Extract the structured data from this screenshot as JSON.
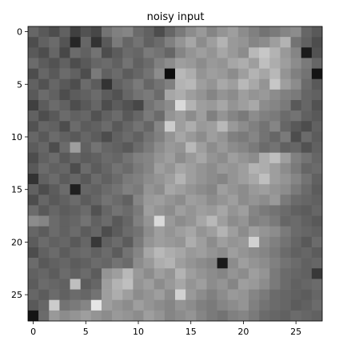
{
  "chart_data": {
    "type": "heatmap",
    "title": "noisy input",
    "xlabel": "",
    "ylabel": "",
    "colormap": "gray",
    "rows": 28,
    "cols": 28,
    "xlim": [
      -0.5,
      27.5
    ],
    "ylim": [
      27.5,
      -0.5
    ],
    "x_ticks": [
      0,
      5,
      10,
      15,
      20,
      25
    ],
    "y_ticks": [
      0,
      5,
      10,
      15,
      20,
      25
    ],
    "x_tick_labels": [
      "0",
      "5",
      "10",
      "15",
      "20",
      "25"
    ],
    "y_tick_labels": [
      "0",
      "5",
      "10",
      "15",
      "20",
      "25"
    ],
    "grid": false,
    "values": [
      [
        0.4,
        0.35,
        0.3,
        0.38,
        0.25,
        0.32,
        0.28,
        0.45,
        0.5,
        0.52,
        0.42,
        0.38,
        0.3,
        0.4,
        0.48,
        0.55,
        0.6,
        0.52,
        0.58,
        0.62,
        0.55,
        0.5,
        0.45,
        0.48,
        0.52,
        0.55,
        0.4,
        0.35
      ],
      [
        0.3,
        0.38,
        0.42,
        0.33,
        0.15,
        0.4,
        0.2,
        0.35,
        0.48,
        0.4,
        0.45,
        0.38,
        0.42,
        0.5,
        0.58,
        0.65,
        0.55,
        0.62,
        0.7,
        0.6,
        0.58,
        0.52,
        0.55,
        0.62,
        0.7,
        0.45,
        0.38,
        0.3
      ],
      [
        0.35,
        0.3,
        0.4,
        0.28,
        0.42,
        0.38,
        0.45,
        0.3,
        0.36,
        0.42,
        0.4,
        0.48,
        0.45,
        0.4,
        0.52,
        0.58,
        0.62,
        0.58,
        0.65,
        0.6,
        0.55,
        0.72,
        0.78,
        0.7,
        0.6,
        0.52,
        0.1,
        0.32
      ],
      [
        0.42,
        0.36,
        0.32,
        0.38,
        0.3,
        0.35,
        0.4,
        0.42,
        0.38,
        0.45,
        0.38,
        0.42,
        0.5,
        0.55,
        0.62,
        0.6,
        0.55,
        0.6,
        0.58,
        0.65,
        0.68,
        0.62,
        0.75,
        0.68,
        0.62,
        0.55,
        0.48,
        0.4
      ],
      [
        0.3,
        0.4,
        0.35,
        0.42,
        0.38,
        0.3,
        0.48,
        0.38,
        0.42,
        0.36,
        0.4,
        0.45,
        0.55,
        0.05,
        0.72,
        0.68,
        0.58,
        0.62,
        0.6,
        0.55,
        0.62,
        0.7,
        0.65,
        0.72,
        0.58,
        0.5,
        0.45,
        0.08
      ],
      [
        0.38,
        0.32,
        0.4,
        0.35,
        0.3,
        0.42,
        0.36,
        0.2,
        0.38,
        0.42,
        0.48,
        0.4,
        0.45,
        0.5,
        0.7,
        0.72,
        0.62,
        0.58,
        0.66,
        0.62,
        0.72,
        0.66,
        0.58,
        0.78,
        0.62,
        0.55,
        0.42,
        0.35
      ],
      [
        0.35,
        0.42,
        0.38,
        0.3,
        0.36,
        0.38,
        0.42,
        0.36,
        0.32,
        0.4,
        0.45,
        0.48,
        0.42,
        0.65,
        0.68,
        0.62,
        0.58,
        0.52,
        0.58,
        0.55,
        0.62,
        0.58,
        0.6,
        0.55,
        0.5,
        0.48,
        0.4,
        0.38
      ],
      [
        0.25,
        0.36,
        0.42,
        0.38,
        0.3,
        0.35,
        0.4,
        0.3,
        0.36,
        0.32,
        0.28,
        0.45,
        0.5,
        0.55,
        0.85,
        0.7,
        0.62,
        0.6,
        0.65,
        0.58,
        0.62,
        0.66,
        0.55,
        0.52,
        0.48,
        0.35,
        0.4,
        0.32
      ],
      [
        0.38,
        0.3,
        0.35,
        0.42,
        0.38,
        0.4,
        0.32,
        0.38,
        0.42,
        0.35,
        0.4,
        0.48,
        0.42,
        0.58,
        0.62,
        0.55,
        0.62,
        0.5,
        0.58,
        0.52,
        0.48,
        0.55,
        0.5,
        0.48,
        0.42,
        0.45,
        0.38,
        0.35
      ],
      [
        0.32,
        0.4,
        0.38,
        0.3,
        0.42,
        0.36,
        0.38,
        0.42,
        0.35,
        0.4,
        0.45,
        0.4,
        0.52,
        0.8,
        0.62,
        0.68,
        0.6,
        0.62,
        0.72,
        0.6,
        0.55,
        0.5,
        0.45,
        0.52,
        0.4,
        0.35,
        0.3,
        0.38
      ],
      [
        0.4,
        0.35,
        0.42,
        0.38,
        0.35,
        0.4,
        0.36,
        0.3,
        0.38,
        0.42,
        0.38,
        0.45,
        0.5,
        0.58,
        0.65,
        0.6,
        0.55,
        0.62,
        0.58,
        0.5,
        0.48,
        0.52,
        0.45,
        0.4,
        0.48,
        0.3,
        0.42,
        0.36
      ],
      [
        0.36,
        0.4,
        0.3,
        0.42,
        0.62,
        0.38,
        0.45,
        0.4,
        0.38,
        0.35,
        0.42,
        0.48,
        0.55,
        0.6,
        0.58,
        0.72,
        0.62,
        0.55,
        0.6,
        0.55,
        0.52,
        0.48,
        0.42,
        0.45,
        0.38,
        0.4,
        0.32,
        0.38
      ],
      [
        0.3,
        0.38,
        0.42,
        0.35,
        0.4,
        0.36,
        0.38,
        0.42,
        0.4,
        0.45,
        0.5,
        0.52,
        0.58,
        0.62,
        0.55,
        0.6,
        0.65,
        0.58,
        0.55,
        0.62,
        0.58,
        0.55,
        0.68,
        0.75,
        0.62,
        0.5,
        0.45,
        0.4
      ],
      [
        0.35,
        0.42,
        0.38,
        0.4,
        0.3,
        0.42,
        0.36,
        0.4,
        0.45,
        0.42,
        0.48,
        0.52,
        0.62,
        0.58,
        0.65,
        0.62,
        0.58,
        0.55,
        0.6,
        0.58,
        0.62,
        0.7,
        0.68,
        0.62,
        0.55,
        0.48,
        0.4,
        0.42
      ],
      [
        0.2,
        0.38,
        0.42,
        0.36,
        0.4,
        0.35,
        0.42,
        0.38,
        0.42,
        0.48,
        0.5,
        0.55,
        0.58,
        0.62,
        0.7,
        0.62,
        0.58,
        0.55,
        0.52,
        0.58,
        0.62,
        0.66,
        0.75,
        0.62,
        0.58,
        0.52,
        0.45,
        0.38
      ],
      [
        0.38,
        0.3,
        0.36,
        0.42,
        0.12,
        0.4,
        0.38,
        0.42,
        0.45,
        0.5,
        0.48,
        0.58,
        0.55,
        0.65,
        0.62,
        0.58,
        0.55,
        0.52,
        0.62,
        0.58,
        0.55,
        0.6,
        0.62,
        0.58,
        0.55,
        0.48,
        0.42,
        0.36
      ],
      [
        0.3,
        0.4,
        0.35,
        0.38,
        0.42,
        0.36,
        0.4,
        0.45,
        0.42,
        0.38,
        0.52,
        0.6,
        0.62,
        0.58,
        0.55,
        0.62,
        0.6,
        0.55,
        0.58,
        0.62,
        0.55,
        0.58,
        0.55,
        0.6,
        0.48,
        0.42,
        0.4,
        0.38
      ],
      [
        0.42,
        0.35,
        0.4,
        0.36,
        0.38,
        0.42,
        0.32,
        0.4,
        0.45,
        0.42,
        0.48,
        0.62,
        0.58,
        0.55,
        0.62,
        0.58,
        0.62,
        0.6,
        0.65,
        0.58,
        0.62,
        0.52,
        0.48,
        0.45,
        0.42,
        0.38,
        0.36,
        0.4
      ],
      [
        0.55,
        0.52,
        0.42,
        0.38,
        0.4,
        0.45,
        0.38,
        0.42,
        0.35,
        0.4,
        0.5,
        0.58,
        0.85,
        0.6,
        0.55,
        0.58,
        0.65,
        0.72,
        0.62,
        0.55,
        0.58,
        0.5,
        0.52,
        0.48,
        0.4,
        0.42,
        0.38,
        0.35
      ],
      [
        0.4,
        0.36,
        0.42,
        0.38,
        0.42,
        0.36,
        0.4,
        0.3,
        0.36,
        0.42,
        0.45,
        0.55,
        0.62,
        0.58,
        0.62,
        0.65,
        0.58,
        0.62,
        0.7,
        0.62,
        0.55,
        0.62,
        0.58,
        0.55,
        0.48,
        0.42,
        0.4,
        0.38
      ],
      [
        0.36,
        0.42,
        0.38,
        0.4,
        0.35,
        0.4,
        0.22,
        0.38,
        0.42,
        0.36,
        0.48,
        0.58,
        0.62,
        0.6,
        0.58,
        0.68,
        0.62,
        0.55,
        0.62,
        0.58,
        0.6,
        0.82,
        0.55,
        0.5,
        0.45,
        0.4,
        0.35,
        0.42
      ],
      [
        0.3,
        0.38,
        0.42,
        0.36,
        0.4,
        0.42,
        0.38,
        0.42,
        0.36,
        0.45,
        0.52,
        0.65,
        0.72,
        0.68,
        0.65,
        0.6,
        0.62,
        0.58,
        0.55,
        0.62,
        0.58,
        0.55,
        0.52,
        0.48,
        0.42,
        0.38,
        0.4,
        0.36
      ],
      [
        0.42,
        0.35,
        0.38,
        0.4,
        0.36,
        0.38,
        0.42,
        0.4,
        0.45,
        0.42,
        0.55,
        0.6,
        0.68,
        0.7,
        0.62,
        0.58,
        0.55,
        0.52,
        0.1,
        0.55,
        0.62,
        0.58,
        0.55,
        0.5,
        0.45,
        0.42,
        0.38,
        0.4
      ],
      [
        0.38,
        0.4,
        0.36,
        0.42,
        0.38,
        0.42,
        0.36,
        0.58,
        0.62,
        0.72,
        0.6,
        0.55,
        0.62,
        0.58,
        0.7,
        0.62,
        0.58,
        0.55,
        0.52,
        0.58,
        0.55,
        0.62,
        0.58,
        0.48,
        0.42,
        0.4,
        0.38,
        0.22
      ],
      [
        0.36,
        0.42,
        0.4,
        0.38,
        0.75,
        0.36,
        0.4,
        0.62,
        0.7,
        0.75,
        0.58,
        0.62,
        0.55,
        0.6,
        0.65,
        0.58,
        0.62,
        0.55,
        0.58,
        0.52,
        0.62,
        0.6,
        0.55,
        0.48,
        0.42,
        0.38,
        0.4,
        0.42
      ],
      [
        0.4,
        0.36,
        0.42,
        0.38,
        0.42,
        0.4,
        0.45,
        0.62,
        0.68,
        0.62,
        0.55,
        0.58,
        0.62,
        0.55,
        0.82,
        0.6,
        0.55,
        0.5,
        0.55,
        0.6,
        0.58,
        0.52,
        0.48,
        0.42,
        0.4,
        0.38,
        0.36,
        0.4
      ],
      [
        0.35,
        0.4,
        0.8,
        0.45,
        0.48,
        0.52,
        0.9,
        0.62,
        0.58,
        0.55,
        0.62,
        0.58,
        0.55,
        0.52,
        0.58,
        0.55,
        0.5,
        0.48,
        0.52,
        0.55,
        0.58,
        0.5,
        0.45,
        0.42,
        0.4,
        0.36,
        0.38,
        0.42
      ],
      [
        0.08,
        0.42,
        0.6,
        0.55,
        0.58,
        0.62,
        0.58,
        0.55,
        0.6,
        0.58,
        0.55,
        0.62,
        0.58,
        0.52,
        0.55,
        0.58,
        0.52,
        0.48,
        0.45,
        0.5,
        0.52,
        0.48,
        0.42,
        0.4,
        0.38,
        0.42,
        0.4,
        0.38
      ]
    ]
  }
}
